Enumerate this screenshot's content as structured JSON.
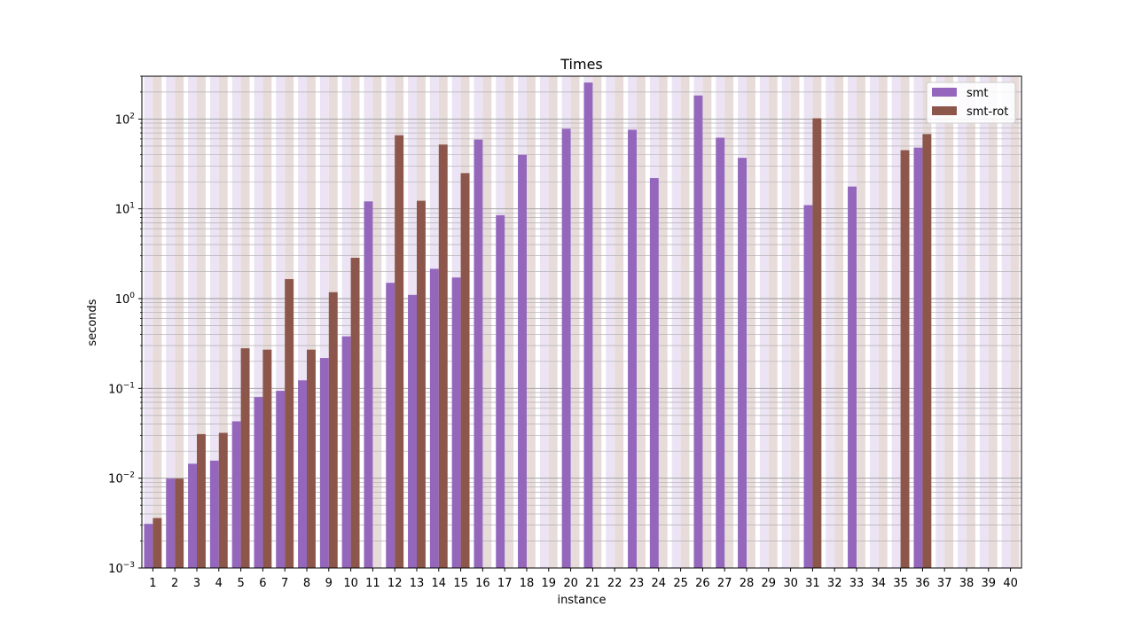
{
  "chart_data": {
    "type": "bar",
    "title": "Times",
    "xlabel": "instance",
    "ylabel": "seconds",
    "yscale": "log",
    "ylim": [
      0.001,
      300
    ],
    "y_ticks": [
      {
        "value": 0.001,
        "base": "10",
        "exp": "−3"
      },
      {
        "value": 0.01,
        "base": "10",
        "exp": "−2"
      },
      {
        "value": 0.1,
        "base": "10",
        "exp": "−1"
      },
      {
        "value": 1,
        "base": "10",
        "exp": "0"
      },
      {
        "value": 10,
        "base": "10",
        "exp": "1"
      },
      {
        "value": 100,
        "base": "10",
        "exp": "2"
      }
    ],
    "grid": "on (major and minor, y-axis)",
    "legend_position": "top-right",
    "categories": [
      "1",
      "2",
      "3",
      "4",
      "5",
      "6",
      "7",
      "8",
      "9",
      "10",
      "11",
      "12",
      "13",
      "14",
      "15",
      "16",
      "17",
      "18",
      "19",
      "20",
      "21",
      "22",
      "23",
      "24",
      "25",
      "26",
      "27",
      "28",
      "29",
      "30",
      "31",
      "32",
      "33",
      "34",
      "35",
      "36",
      "37",
      "38",
      "39",
      "40"
    ],
    "series": [
      {
        "name": "smt",
        "color": "#9467bd",
        "background_color": "#ece4f4",
        "values": [
          0.0031,
          0.0099,
          0.0145,
          0.0157,
          0.043,
          0.08,
          0.094,
          0.123,
          0.218,
          0.38,
          12.1,
          1.5,
          1.1,
          2.15,
          1.72,
          59,
          8.5,
          40,
          null,
          78,
          255,
          null,
          76,
          22,
          null,
          183,
          62,
          37,
          null,
          null,
          11,
          null,
          17.7,
          null,
          null,
          48,
          null,
          null,
          null,
          null
        ]
      },
      {
        "name": "smt-rot",
        "color": "#8c564b",
        "background_color": "#e8dcdb",
        "values": [
          0.0036,
          0.0099,
          0.031,
          0.032,
          0.28,
          0.27,
          1.65,
          0.27,
          1.18,
          2.85,
          null,
          66,
          12.3,
          52,
          25,
          null,
          null,
          null,
          null,
          null,
          null,
          null,
          null,
          null,
          null,
          null,
          null,
          null,
          null,
          null,
          102,
          null,
          null,
          null,
          45,
          68,
          null,
          null,
          null,
          null
        ]
      }
    ]
  }
}
